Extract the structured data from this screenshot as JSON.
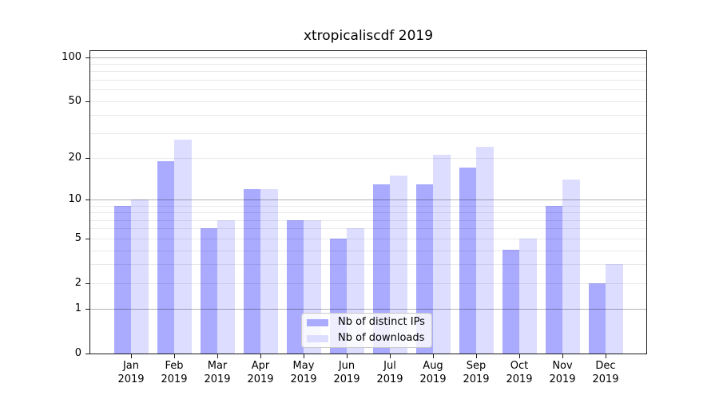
{
  "chart_data": {
    "type": "bar",
    "title": "xtropicaliscdf 2019",
    "categories": [
      "Jan 2019",
      "Feb 2019",
      "Mar 2019",
      "Apr 2019",
      "May 2019",
      "Jun 2019",
      "Jul 2019",
      "Aug 2019",
      "Sep 2019",
      "Oct 2019",
      "Nov 2019",
      "Dec 2019"
    ],
    "series": [
      {
        "name": "Nb of distinct IPs",
        "color": "#aaaaff",
        "values": [
          9,
          19,
          6,
          12,
          7,
          5,
          13,
          13,
          17,
          4,
          9,
          2
        ]
      },
      {
        "name": "Nb of downloads",
        "color": "#ddddff",
        "values": [
          10,
          27,
          7,
          12,
          7,
          6,
          15,
          21,
          24,
          5,
          14,
          3
        ]
      }
    ],
    "xlabel": "",
    "ylabel": "",
    "yscale": "log1p",
    "ylim": [
      0,
      110
    ],
    "yticks": [
      0,
      1,
      2,
      5,
      10,
      20,
      50,
      100
    ],
    "major_gridlines": [
      1,
      10,
      100
    ],
    "minor_gridlines": [
      2,
      3,
      4,
      5,
      6,
      7,
      8,
      9,
      20,
      30,
      40,
      50,
      60,
      70,
      80,
      90
    ],
    "grid": "horizontal",
    "legend_position": "lower center",
    "background": "#ffffff",
    "spine_color": "#1a1a1a"
  }
}
